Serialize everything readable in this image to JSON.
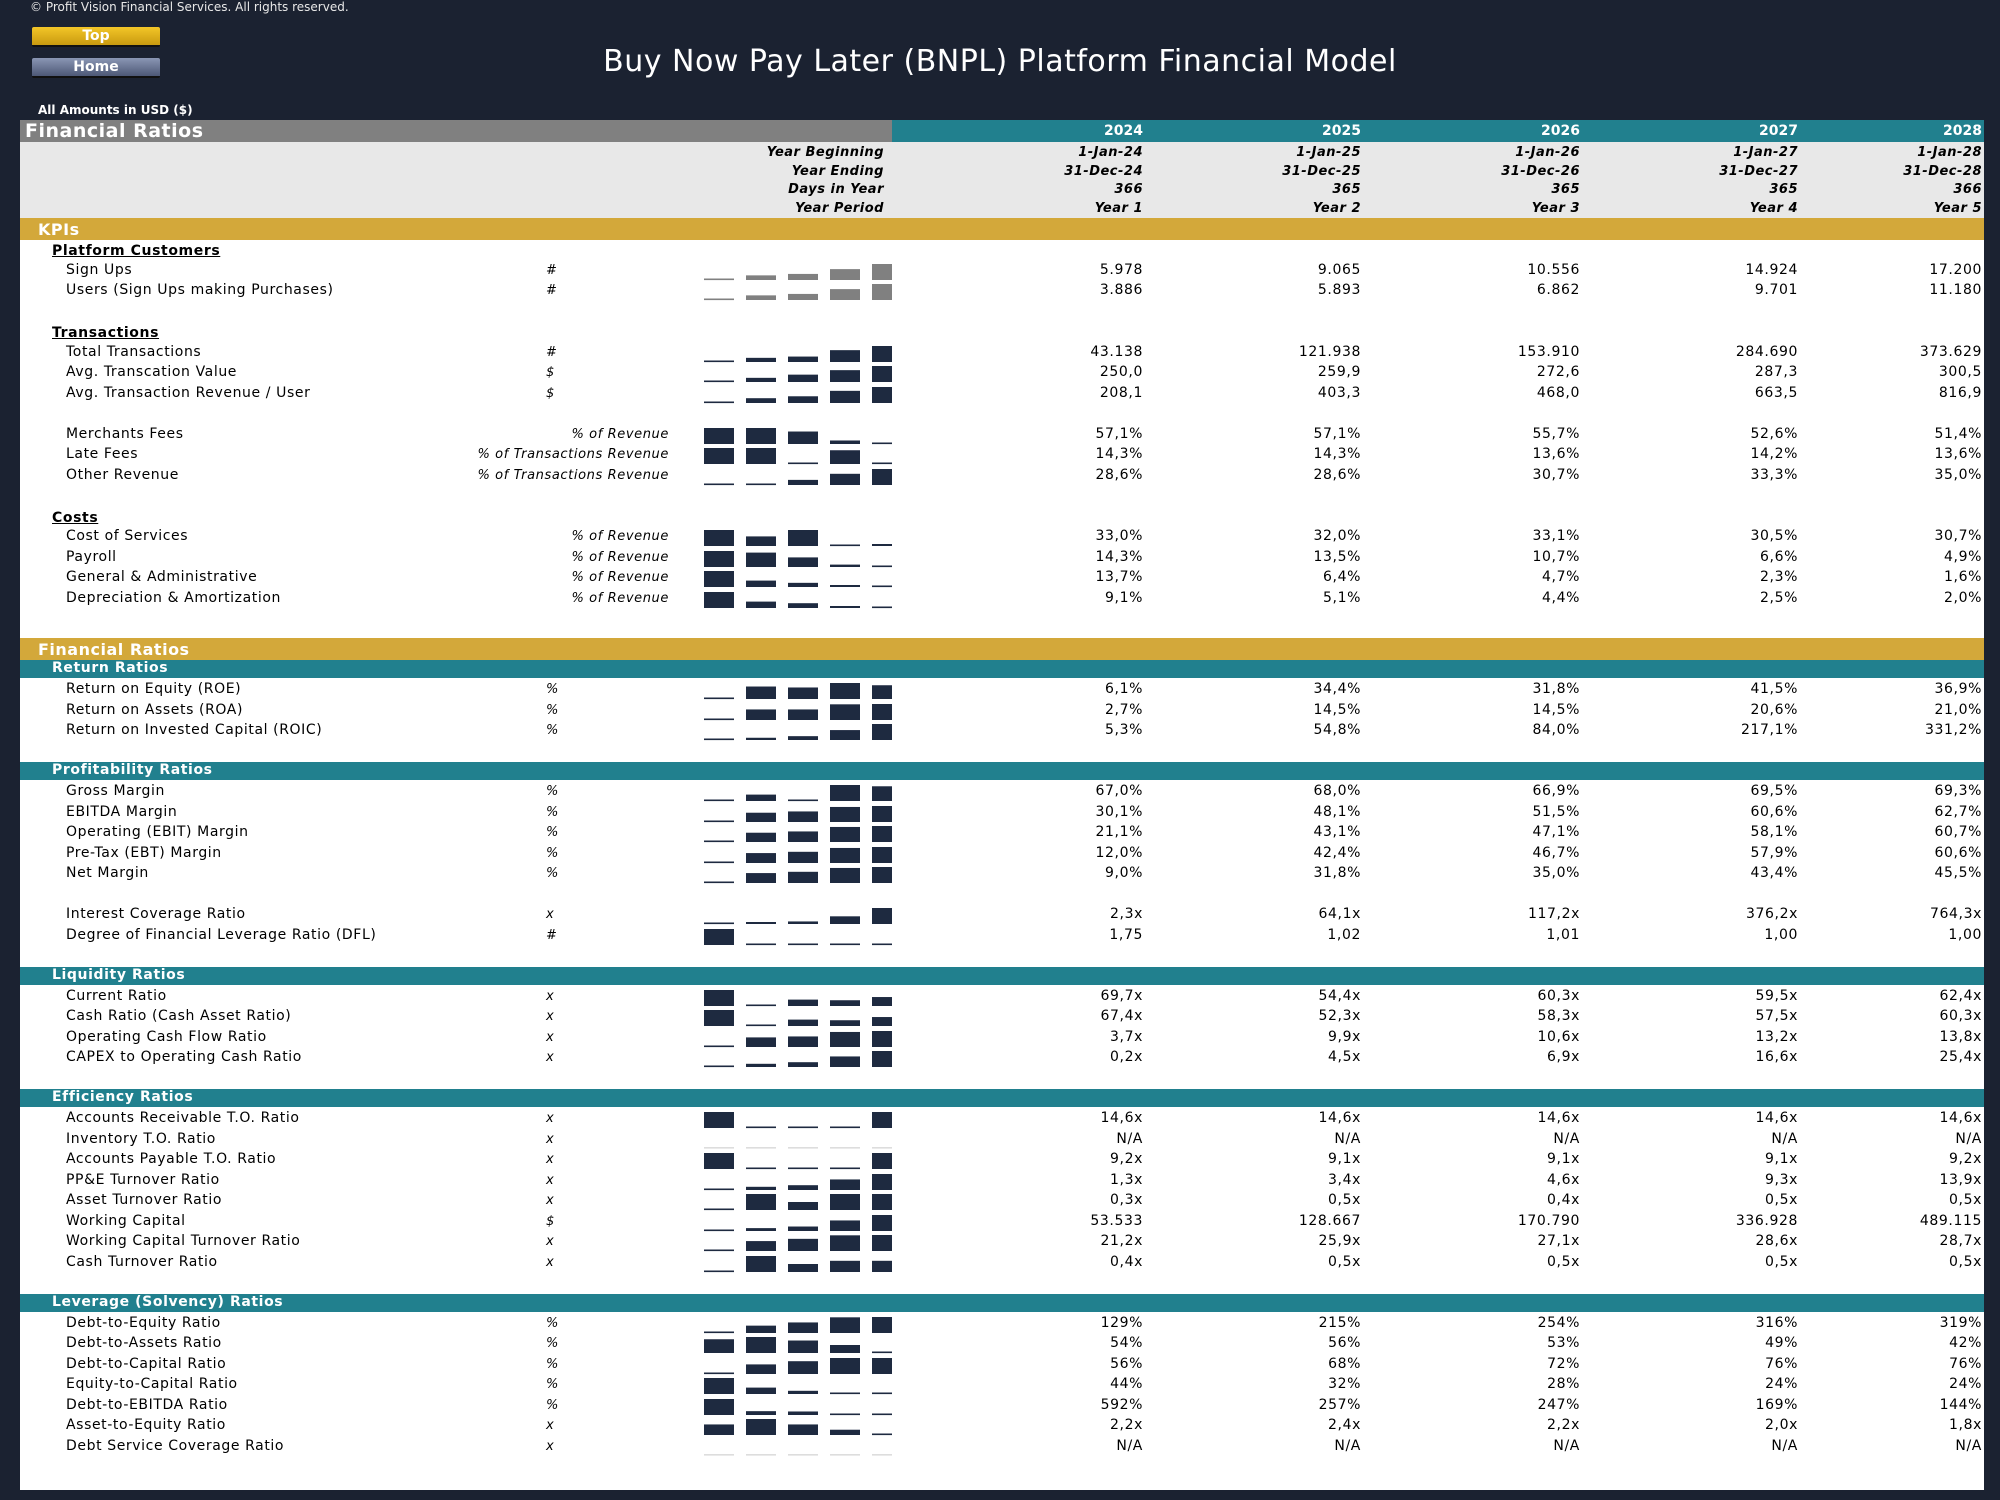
{
  "header": {
    "copyright": "© Profit Vision Financial Services. All rights reserved.",
    "top_button": "Top",
    "home_button": "Home",
    "title": "Buy Now Pay Later (BNPL) Platform Financial Model",
    "amounts": "All Amounts in  USD ($)"
  },
  "sheet": {
    "section_title": "Financial Ratios",
    "years": [
      "2024",
      "2025",
      "2026",
      "2027",
      "2028"
    ],
    "header_rows": [
      {
        "label": "Year Beginning",
        "values": [
          "1-Jan-24",
          "1-Jan-25",
          "1-Jan-26",
          "1-Jan-27",
          "1-Jan-28"
        ]
      },
      {
        "label": "Year Ending",
        "values": [
          "31-Dec-24",
          "31-Dec-25",
          "31-Dec-26",
          "31-Dec-27",
          "31-Dec-28"
        ]
      },
      {
        "label": "Days in Year",
        "values": [
          "366",
          "365",
          "365",
          "365",
          "366"
        ]
      },
      {
        "label": "Year Period",
        "values": [
          "Year 1",
          "Year 2",
          "Year 3",
          "Year 4",
          "Year 5"
        ]
      }
    ],
    "blocks": [
      {
        "kind": "gold",
        "label": "KPIs"
      },
      {
        "kind": "sub",
        "label": "Platform Customers"
      },
      {
        "kind": "row",
        "label": "Sign Ups",
        "unit": "#",
        "values": [
          "5.978",
          "9.065",
          "10.556",
          "14.924",
          "17.200"
        ],
        "spark": [
          0.06,
          0.29,
          0.38,
          0.68,
          1.0
        ],
        "spark_color": "#808080"
      },
      {
        "kind": "row",
        "label": "Users (Sign Ups making Purchases)",
        "unit": "#",
        "values": [
          "3.886",
          "5.893",
          "6.862",
          "9.701",
          "11.180"
        ],
        "spark": [
          0.06,
          0.29,
          0.38,
          0.68,
          1.0
        ],
        "spark_color": "#808080"
      },
      {
        "kind": "gap"
      },
      {
        "kind": "sub",
        "label": "Transactions"
      },
      {
        "kind": "row",
        "label": "Total Transactions",
        "unit": "#",
        "values": [
          "43.138",
          "121.938",
          "153.910",
          "284.690",
          "373.629"
        ],
        "spark": [
          0.06,
          0.26,
          0.34,
          0.74,
          1.0
        ]
      },
      {
        "kind": "row",
        "label": "Avg. Transcation Value",
        "unit": "$",
        "values": [
          "250,0",
          "259,9",
          "272,6",
          "287,3",
          "300,5"
        ],
        "spark": [
          0.06,
          0.26,
          0.46,
          0.74,
          1.0
        ]
      },
      {
        "kind": "row",
        "label": "Avg. Transaction Revenue / User",
        "unit": "$",
        "values": [
          "208,1",
          "403,3",
          "468,0",
          "663,5",
          "816,9"
        ],
        "spark": [
          0.06,
          0.3,
          0.42,
          0.76,
          1.0
        ]
      },
      {
        "kind": "gap"
      },
      {
        "kind": "row",
        "label": "Merchants Fees",
        "unit": "% of Revenue",
        "values": [
          "57,1%",
          "57,1%",
          "55,7%",
          "52,6%",
          "51,4%"
        ],
        "spark": [
          1.0,
          1.0,
          0.78,
          0.22,
          0.06
        ]
      },
      {
        "kind": "row",
        "label": "Late Fees",
        "unit": "% of Transactions Revenue",
        "values": [
          "14,3%",
          "14,3%",
          "13,6%",
          "14,2%",
          "13,6%"
        ],
        "spark": [
          1.0,
          1.0,
          0.06,
          0.86,
          0.06
        ]
      },
      {
        "kind": "row",
        "label": "Other Revenue",
        "unit": "% of Transactions Revenue",
        "values": [
          "28,6%",
          "28,6%",
          "30,7%",
          "33,3%",
          "35,0%"
        ],
        "spark": [
          0.06,
          0.06,
          0.32,
          0.7,
          1.0
        ]
      },
      {
        "kind": "gap"
      },
      {
        "kind": "sub",
        "label": "Costs"
      },
      {
        "kind": "row",
        "label": "Cost of Services",
        "unit": "% of Revenue",
        "values": [
          "33,0%",
          "32,0%",
          "33,1%",
          "30,5%",
          "30,7%"
        ],
        "spark": [
          1.0,
          0.6,
          1.0,
          0.06,
          0.1
        ]
      },
      {
        "kind": "row",
        "label": "Payroll",
        "unit": "% of Revenue",
        "values": [
          "14,3%",
          "13,5%",
          "10,7%",
          "6,6%",
          "4,9%"
        ],
        "spark": [
          1.0,
          0.9,
          0.6,
          0.15,
          0.06
        ]
      },
      {
        "kind": "row",
        "label": "General & Administrative",
        "unit": "% of Revenue",
        "values": [
          "13,7%",
          "6,4%",
          "4,7%",
          "2,3%",
          "1,6%"
        ],
        "spark": [
          1.0,
          0.4,
          0.26,
          0.08,
          0.06
        ]
      },
      {
        "kind": "row",
        "label": "Depreciation & Amortization",
        "unit": "% of Revenue",
        "values": [
          "9,1%",
          "5,1%",
          "4,4%",
          "2,5%",
          "2,0%"
        ],
        "spark": [
          1.0,
          0.4,
          0.3,
          0.08,
          0.06
        ]
      },
      {
        "kind": "gap2"
      },
      {
        "kind": "gold",
        "label": "Financial Ratios"
      },
      {
        "kind": "teal",
        "label": "Return Ratios"
      },
      {
        "kind": "row",
        "label": "Return on Equity (ROE)",
        "unit": "%",
        "values": [
          "6,1%",
          "34,4%",
          "31,8%",
          "41,5%",
          "36,9%"
        ],
        "spark": [
          0.06,
          0.78,
          0.72,
          1.0,
          0.86
        ]
      },
      {
        "kind": "row",
        "label": "Return on Assets (ROA)",
        "unit": "%",
        "values": [
          "2,7%",
          "14,5%",
          "14,5%",
          "20,6%",
          "21,0%"
        ],
        "spark": [
          0.06,
          0.66,
          0.66,
          0.98,
          1.0
        ]
      },
      {
        "kind": "row",
        "label": "Return on Invested Capital (ROIC)",
        "unit": "%",
        "values": [
          "5,3%",
          "54,8%",
          "84,0%",
          "217,1%",
          "331,2%"
        ],
        "spark": [
          0.06,
          0.14,
          0.24,
          0.62,
          1.0
        ]
      },
      {
        "kind": "gap"
      },
      {
        "kind": "teal",
        "label": "Profitability Ratios"
      },
      {
        "kind": "row",
        "label": "Gross Margin",
        "unit": "%",
        "values": [
          "67,0%",
          "68,0%",
          "66,9%",
          "69,5%",
          "69,3%"
        ],
        "spark": [
          0.06,
          0.4,
          0.06,
          1.0,
          0.92
        ]
      },
      {
        "kind": "row",
        "label": "EBITDA Margin",
        "unit": "%",
        "values": [
          "30,1%",
          "48,1%",
          "51,5%",
          "60,6%",
          "62,7%"
        ],
        "spark": [
          0.06,
          0.58,
          0.66,
          0.94,
          1.0
        ]
      },
      {
        "kind": "row",
        "label": "Operating (EBIT) Margin",
        "unit": "%",
        "values": [
          "21,1%",
          "43,1%",
          "47,1%",
          "58,1%",
          "60,7%"
        ],
        "spark": [
          0.06,
          0.58,
          0.66,
          0.94,
          1.0
        ]
      },
      {
        "kind": "row",
        "label": "Pre-Tax (EBT) Margin",
        "unit": "%",
        "values": [
          "12,0%",
          "42,4%",
          "46,7%",
          "57,9%",
          "60,6%"
        ],
        "spark": [
          0.06,
          0.62,
          0.7,
          0.94,
          1.0
        ]
      },
      {
        "kind": "row",
        "label": "Net Margin",
        "unit": "%",
        "values": [
          "9,0%",
          "31,8%",
          "35,0%",
          "43,4%",
          "45,5%"
        ],
        "spark": [
          0.06,
          0.62,
          0.7,
          0.94,
          1.0
        ]
      },
      {
        "kind": "gap"
      },
      {
        "kind": "row",
        "label": "Interest Coverage Ratio",
        "unit": "x",
        "values": [
          "2,3x",
          "64,1x",
          "117,2x",
          "376,2x",
          "764,3x"
        ],
        "spark": [
          0.06,
          0.09,
          0.16,
          0.48,
          1.0
        ]
      },
      {
        "kind": "row",
        "label": "Degree of Financial Leverage Ratio (DFL)",
        "unit": "#",
        "values": [
          "1,75",
          "1,02",
          "1,01",
          "1,00",
          "1,00"
        ],
        "spark": [
          1.0,
          0.06,
          0.06,
          0.06,
          0.06
        ]
      },
      {
        "kind": "gap"
      },
      {
        "kind": "teal",
        "label": "Liquidity Ratios"
      },
      {
        "kind": "row",
        "label": "Current Ratio",
        "unit": "x",
        "values": [
          "69,7x",
          "54,4x",
          "60,3x",
          "59,5x",
          "62,4x"
        ],
        "spark": [
          1.0,
          0.06,
          0.4,
          0.36,
          0.56
        ]
      },
      {
        "kind": "row",
        "label": "Cash Ratio (Cash Asset Ratio)",
        "unit": "x",
        "values": [
          "67,4x",
          "52,3x",
          "58,3x",
          "57,5x",
          "60,3x"
        ],
        "spark": [
          1.0,
          0.06,
          0.4,
          0.36,
          0.56
        ]
      },
      {
        "kind": "row",
        "label": "Operating Cash Flow Ratio",
        "unit": "x",
        "values": [
          "3,7x",
          "9,9x",
          "10,6x",
          "13,2x",
          "13,8x"
        ],
        "spark": [
          0.06,
          0.6,
          0.66,
          0.94,
          1.0
        ]
      },
      {
        "kind": "row",
        "label": "CAPEX to Operating Cash Ratio",
        "unit": "x",
        "values": [
          "0,2x",
          "4,5x",
          "6,9x",
          "16,6x",
          "25,4x"
        ],
        "spark": [
          0.06,
          0.2,
          0.3,
          0.66,
          1.0
        ]
      },
      {
        "kind": "gap"
      },
      {
        "kind": "teal",
        "label": "Efficiency Ratios"
      },
      {
        "kind": "row",
        "label": "Accounts Receivable T.O. Ratio",
        "unit": "x",
        "values": [
          "14,6x",
          "14,6x",
          "14,6x",
          "14,6x",
          "14,6x"
        ],
        "spark": [
          1.0,
          0.06,
          0.06,
          0.06,
          1.0
        ]
      },
      {
        "kind": "row",
        "label": "Inventory T.O. Ratio",
        "unit": "x",
        "values": [
          "N/A",
          "N/A",
          "N/A",
          "N/A",
          "N/A"
        ],
        "spark": [
          0,
          0,
          0,
          0,
          0
        ]
      },
      {
        "kind": "row",
        "label": "Accounts Payable T.O. Ratio",
        "unit": "x",
        "values": [
          "9,2x",
          "9,1x",
          "9,1x",
          "9,1x",
          "9,2x"
        ],
        "spark": [
          1.0,
          0.06,
          0.06,
          0.06,
          1.0
        ]
      },
      {
        "kind": "row",
        "label": "PP&E Turnover Ratio",
        "unit": "x",
        "values": [
          "1,3x",
          "3,4x",
          "4,6x",
          "9,3x",
          "13,9x"
        ],
        "spark": [
          0.06,
          0.2,
          0.3,
          0.66,
          1.0
        ]
      },
      {
        "kind": "row",
        "label": "Asset Turnover Ratio",
        "unit": "x",
        "values": [
          "0,3x",
          "0,5x",
          "0,4x",
          "0,5x",
          "0,5x"
        ],
        "spark": [
          0.06,
          1.0,
          0.5,
          1.0,
          1.0
        ]
      },
      {
        "kind": "row",
        "label": "Working Capital",
        "unit": "$",
        "values": [
          "53.533",
          "128.667",
          "170.790",
          "336.928",
          "489.115"
        ],
        "spark": [
          0.06,
          0.18,
          0.28,
          0.66,
          1.0
        ]
      },
      {
        "kind": "row",
        "label": "Working Capital Turnover Ratio",
        "unit": "x",
        "values": [
          "21,2x",
          "25,9x",
          "27,1x",
          "28,6x",
          "28,7x"
        ],
        "spark": [
          0.06,
          0.62,
          0.76,
          0.98,
          1.0
        ]
      },
      {
        "kind": "row",
        "label": "Cash Turnover Ratio",
        "unit": "x",
        "values": [
          "0,4x",
          "0,5x",
          "0,5x",
          "0,5x",
          "0,5x"
        ],
        "spark": [
          0.06,
          1.0,
          0.5,
          0.7,
          0.7
        ]
      },
      {
        "kind": "gap"
      },
      {
        "kind": "teal",
        "label": "Leverage (Solvency) Ratios"
      },
      {
        "kind": "row",
        "label": "Debt-to-Equity Ratio",
        "unit": "%",
        "values": [
          "129%",
          "215%",
          "254%",
          "316%",
          "319%"
        ],
        "spark": [
          0.06,
          0.46,
          0.66,
          0.98,
          1.0
        ]
      },
      {
        "kind": "row",
        "label": "Debt-to-Assets Ratio",
        "unit": "%",
        "values": [
          "54%",
          "56%",
          "53%",
          "49%",
          "42%"
        ],
        "spark": [
          0.86,
          1.0,
          0.78,
          0.5,
          0.06
        ]
      },
      {
        "kind": "row",
        "label": "Debt-to-Capital Ratio",
        "unit": "%",
        "values": [
          "56%",
          "68%",
          "72%",
          "76%",
          "76%"
        ],
        "spark": [
          0.06,
          0.6,
          0.8,
          1.0,
          1.0
        ]
      },
      {
        "kind": "row",
        "label": "Equity-to-Capital Ratio",
        "unit": "%",
        "values": [
          "44%",
          "32%",
          "28%",
          "24%",
          "24%"
        ],
        "spark": [
          1.0,
          0.4,
          0.2,
          0.06,
          0.06
        ]
      },
      {
        "kind": "row",
        "label": "Debt-to-EBITDA Ratio",
        "unit": "%",
        "values": [
          "592%",
          "257%",
          "247%",
          "169%",
          "144%"
        ],
        "spark": [
          1.0,
          0.24,
          0.22,
          0.06,
          0.02
        ]
      },
      {
        "kind": "row",
        "label": "Asset-to-Equity Ratio",
        "unit": "x",
        "values": [
          "2,2x",
          "2,4x",
          "2,2x",
          "2,0x",
          "1,8x"
        ],
        "spark": [
          0.66,
          1.0,
          0.66,
          0.33,
          0.06
        ]
      },
      {
        "kind": "row",
        "label": "Debt Service Coverage Ratio",
        "unit": "x",
        "values": [
          "N/A",
          "N/A",
          "N/A",
          "N/A",
          "N/A"
        ],
        "spark": [
          0,
          0,
          0,
          0,
          0
        ]
      }
    ]
  },
  "colors": {
    "background": "#1b2231",
    "teal": "#21808e",
    "gold": "#d3a83a",
    "spark_dark": "#1e2a40",
    "spark_gray": "#808080"
  }
}
